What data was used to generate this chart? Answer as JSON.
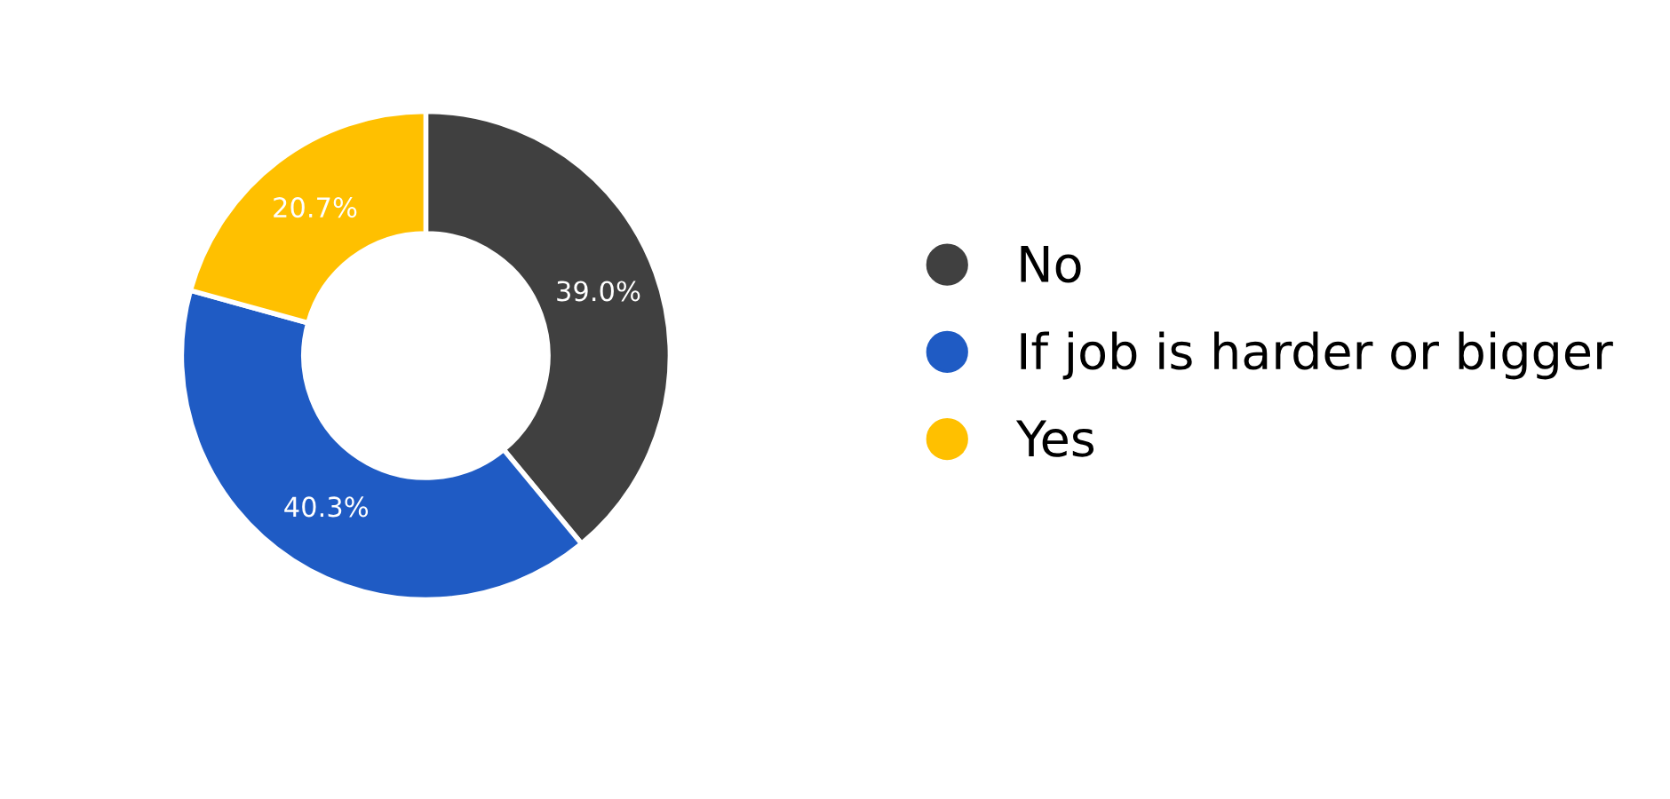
{
  "chart_data": {
    "type": "donut",
    "categories": [
      "No",
      "If job is harder or bigger",
      "Yes"
    ],
    "values": [
      39.0,
      40.3,
      20.7
    ],
    "colors": [
      "#404040",
      "#1f5bc4",
      "#ffc000"
    ],
    "value_labels": [
      "39.0%",
      "40.3%",
      "20.7%"
    ],
    "legend": "right"
  }
}
